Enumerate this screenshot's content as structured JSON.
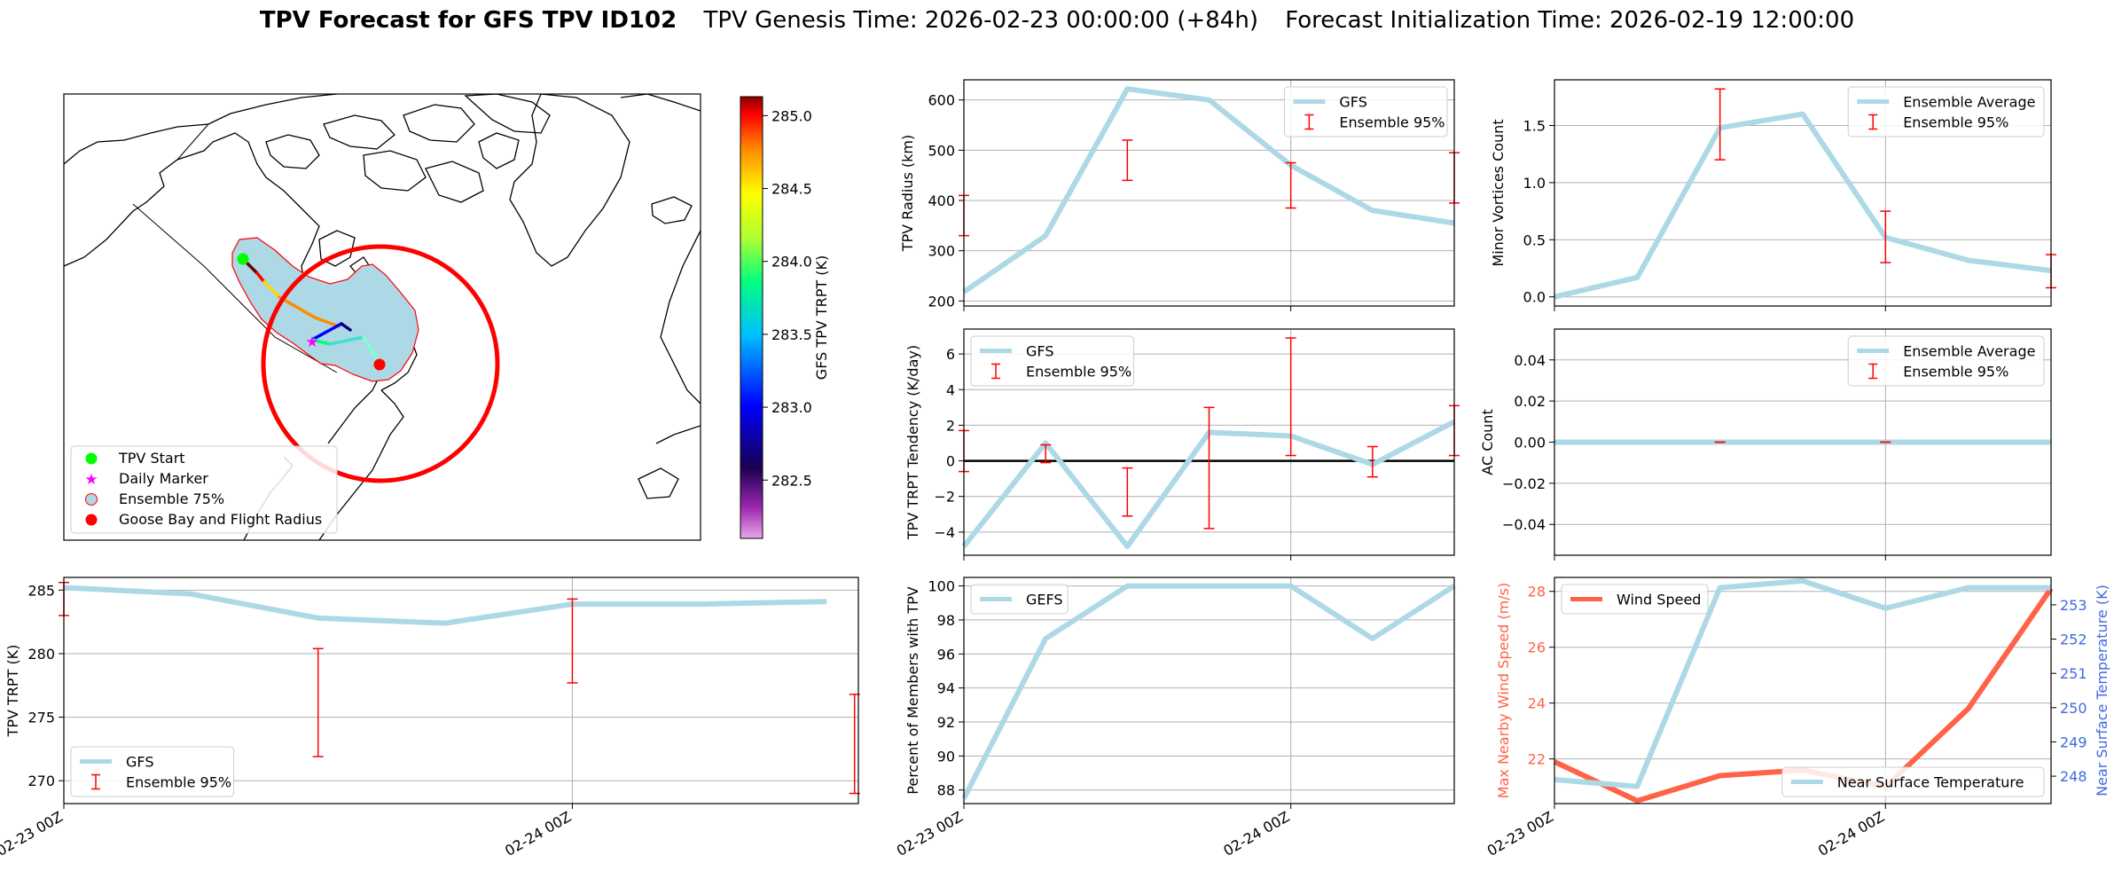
{
  "header": {
    "title_bold": "TPV Forecast for GFS TPV ID102",
    "genesis": "TPV Genesis Time: 2026-02-23 00:00:00 (+84h)",
    "init": "Forecast Initialization Time: 2026-02-19 12:00:00"
  },
  "colors": {
    "gfs_line": "#add8e6",
    "errorbar": "#ff0000",
    "wind": "#ff6347",
    "temp_axis": "#4169e1",
    "grid": "#b0b0b0"
  },
  "map": {
    "colorbar_label": "GFS TPV TRPT (K)",
    "colorbar_ticks": [
      "285.0",
      "284.5",
      "284.0",
      "283.5",
      "283.0",
      "282.5"
    ],
    "colorbar_tick_values": [
      285.0,
      284.5,
      284.0,
      283.5,
      283.0,
      282.5
    ],
    "colorbar_range": [
      282.1,
      285.13
    ],
    "legend": [
      "TPV Start",
      "Daily Marker",
      "Ensemble 75%",
      "Goose Bay and Flight Radius"
    ],
    "trpt_scale": [
      282.22,
      283.0,
      283.3,
      283.6,
      284.5,
      283.2,
      283.0
    ],
    "marker_colors": {
      "start": "#00ff00",
      "daily": "#ff00ff",
      "goose": "#ff0000"
    }
  },
  "chart_data": [
    {
      "id": "trpt",
      "type": "line",
      "title": "",
      "xlabel": "",
      "ylabel": "TPV TRPT (K)",
      "x": [
        0,
        1,
        2,
        3,
        4,
        5,
        6
      ],
      "xticks": [
        {
          "v": 0,
          "label": "02-23 00Z"
        },
        {
          "v": 4,
          "label": "02-24 00Z"
        }
      ],
      "xlim": [
        0,
        6.25
      ],
      "ylim": [
        268.2,
        286.0
      ],
      "yticks": [
        270,
        275,
        280,
        285
      ],
      "series": [
        {
          "name": "GFS",
          "values": [
            285.2,
            284.7,
            282.8,
            282.4,
            283.9,
            283.9,
            284.1
          ]
        }
      ],
      "errorbars": [
        {
          "x": 0,
          "lo": 283.0,
          "hi": 285.6
        },
        {
          "x": 2,
          "lo": 271.9,
          "hi": 280.4
        },
        {
          "x": 4,
          "lo": 277.7,
          "hi": 284.3
        },
        {
          "x": 6.22,
          "lo": 269.0,
          "hi": 276.8
        }
      ],
      "hline": null,
      "legend": [
        "GFS",
        "Ensemble 95%"
      ],
      "legend_loc": "lower-left"
    },
    {
      "id": "radius",
      "type": "line",
      "title": "",
      "xlabel": "",
      "ylabel": "TPV Radius (km)",
      "x": [
        0,
        1,
        2,
        3,
        4,
        5,
        6
      ],
      "xticks": [],
      "xlim": [
        0,
        6
      ],
      "ylim": [
        190,
        640
      ],
      "yticks": [
        200,
        300,
        400,
        500,
        600
      ],
      "series": [
        {
          "name": "GFS",
          "values": [
            218,
            330,
            622,
            600,
            470,
            380,
            355
          ]
        }
      ],
      "errorbars": [
        {
          "x": 0,
          "lo": 330,
          "hi": 410
        },
        {
          "x": 2,
          "lo": 440,
          "hi": 520
        },
        {
          "x": 4,
          "lo": 385,
          "hi": 475
        },
        {
          "x": 6,
          "lo": 395,
          "hi": 495
        }
      ],
      "hline": null,
      "legend": [
        "GFS",
        "Ensemble 95%"
      ],
      "legend_loc": "upper-right"
    },
    {
      "id": "tendency",
      "type": "line",
      "title": "",
      "xlabel": "",
      "ylabel": "TPV TRPT Tendency (K/day)",
      "x": [
        0,
        1,
        2,
        3,
        4,
        5,
        6
      ],
      "xticks": [],
      "xlim": [
        0,
        6
      ],
      "ylim": [
        -5.3,
        7.4
      ],
      "yticks": [
        -4,
        -2,
        0,
        2,
        4,
        6
      ],
      "series": [
        {
          "name": "GFS",
          "values": [
            -4.8,
            1.0,
            -4.8,
            1.6,
            1.4,
            -0.2,
            2.2
          ]
        }
      ],
      "errorbars": [
        {
          "x": 0,
          "lo": -0.6,
          "hi": 1.7
        },
        {
          "x": 1,
          "lo": -0.1,
          "hi": 0.9
        },
        {
          "x": 2,
          "lo": -3.1,
          "hi": -0.4
        },
        {
          "x": 3,
          "lo": -3.8,
          "hi": 3.0
        },
        {
          "x": 4,
          "lo": 0.3,
          "hi": 6.9
        },
        {
          "x": 5,
          "lo": -0.9,
          "hi": 0.8
        },
        {
          "x": 6,
          "lo": 0.3,
          "hi": 3.1
        }
      ],
      "hline": 0,
      "legend": [
        "GFS",
        "Ensemble 95%"
      ],
      "legend_loc": "upper-left"
    },
    {
      "id": "members",
      "type": "line",
      "title": "",
      "xlabel": "",
      "ylabel": "Percent of Members with TPV",
      "x": [
        0,
        1,
        2,
        3,
        4,
        5,
        6
      ],
      "xticks": [
        {
          "v": 0,
          "label": "02-23 00Z"
        },
        {
          "v": 4,
          "label": "02-24 00Z"
        }
      ],
      "xlim": [
        0,
        6
      ],
      "ylim": [
        87.2,
        100.5
      ],
      "yticks": [
        88,
        90,
        92,
        94,
        96,
        98,
        100
      ],
      "series": [
        {
          "name": "GEFS",
          "values": [
            87.5,
            96.9,
            100,
            100,
            100,
            96.9,
            100
          ]
        }
      ],
      "errorbars": [],
      "hline": null,
      "legend": [
        "GEFS"
      ],
      "legend_loc": "upper-left"
    },
    {
      "id": "minor",
      "type": "line",
      "title": "",
      "xlabel": "",
      "ylabel": "Minor Vortices Count",
      "x": [
        0,
        1,
        2,
        3,
        4,
        5,
        6
      ],
      "xticks": [],
      "xlim": [
        0,
        6
      ],
      "ylim": [
        -0.08,
        1.9
      ],
      "yticks": [
        0.0,
        0.5,
        1.0,
        1.5
      ],
      "ytick_labels": [
        "0.0",
        "0.5",
        "1.0",
        "1.5"
      ],
      "series": [
        {
          "name": "Ensemble Average",
          "values": [
            0.0,
            0.17,
            1.48,
            1.6,
            0.52,
            0.32,
            0.23
          ]
        }
      ],
      "errorbars": [
        {
          "x": 2,
          "lo": 1.2,
          "hi": 1.82
        },
        {
          "x": 4,
          "lo": 0.3,
          "hi": 0.75
        },
        {
          "x": 6,
          "lo": 0.08,
          "hi": 0.37
        }
      ],
      "hline": null,
      "legend": [
        "Ensemble Average",
        "Ensemble 95%"
      ],
      "legend_loc": "upper-right"
    },
    {
      "id": "ac",
      "type": "line",
      "title": "",
      "xlabel": "",
      "ylabel": "AC Count",
      "x": [
        0,
        1,
        2,
        3,
        4,
        5,
        6
      ],
      "xticks": [],
      "xlim": [
        0,
        6
      ],
      "ylim": [
        -0.055,
        0.055
      ],
      "yticks": [
        -0.04,
        -0.02,
        0.0,
        0.02,
        0.04
      ],
      "ytick_labels": [
        "−0.04",
        "−0.02",
        "0.00",
        "0.02",
        "0.04"
      ],
      "series": [
        {
          "name": "Ensemble Average",
          "values": [
            0,
            0,
            0,
            0,
            0,
            0,
            0
          ]
        }
      ],
      "errorbars": [
        {
          "x": 2,
          "lo": 0,
          "hi": 0
        },
        {
          "x": 4,
          "lo": 0,
          "hi": 0
        }
      ],
      "hline": null,
      "legend": [
        "Ensemble Average",
        "Ensemble 95%"
      ],
      "legend_loc": "upper-right"
    },
    {
      "id": "wind",
      "type": "line",
      "title": "",
      "xlabel": "",
      "ylabel": "Max Nearby Wind Speed (m/s)",
      "y2label": "Near Surface Temperature (K)",
      "x": [
        0,
        1,
        2,
        3,
        4,
        5,
        6
      ],
      "xticks": [
        {
          "v": 0,
          "label": "02-23 00Z"
        },
        {
          "v": 4,
          "label": "02-24 00Z"
        }
      ],
      "xlim": [
        0,
        6
      ],
      "ylim": [
        20.4,
        28.5
      ],
      "yticks": [
        22,
        24,
        26,
        28
      ],
      "y2lim": [
        247.2,
        253.8
      ],
      "y2ticks": [
        248,
        249,
        250,
        251,
        252,
        253
      ],
      "series": [
        {
          "name": "Wind Speed",
          "axis": "left",
          "values": [
            21.9,
            20.5,
            21.4,
            21.6,
            21.0,
            23.8,
            28.1
          ]
        },
        {
          "name": "Near Surface Temperature",
          "axis": "right",
          "values": [
            247.9,
            247.7,
            253.5,
            253.7,
            252.9,
            253.5,
            253.5
          ]
        }
      ],
      "errorbars": [],
      "hline": null,
      "legend": [
        "Wind Speed"
      ],
      "legend2": [
        "Near Surface Temperature"
      ]
    }
  ]
}
